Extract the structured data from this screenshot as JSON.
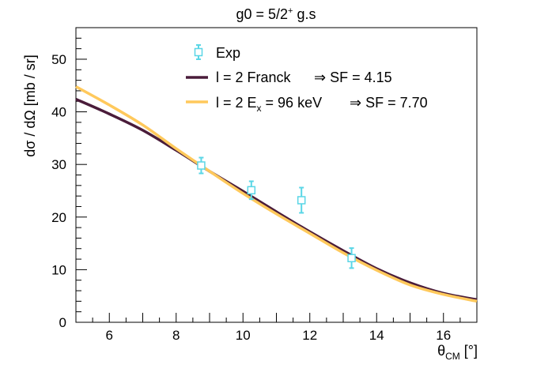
{
  "chart_data": {
    "type": "line",
    "title": "g0 = 5/2",
    "title_sup": "+",
    "title_tail": " g.s",
    "xlabel": "θ",
    "xlabel_sub": "CM",
    "xlabel_unit": " [°]",
    "ylabel": "dσ / dΩ [mb / sr]",
    "xlim": [
      5,
      17
    ],
    "ylim": [
      0,
      56
    ],
    "x_ticks": [
      6,
      8,
      10,
      12,
      14,
      16
    ],
    "y_ticks": [
      0,
      10,
      20,
      30,
      40,
      50
    ],
    "grid": false,
    "legend_position": "top-center",
    "series": [
      {
        "name": "Exp",
        "kind": "points",
        "color": "#5ad6e6",
        "points": [
          {
            "x": 8.75,
            "y": 29.8,
            "err": 1.5
          },
          {
            "x": 10.25,
            "y": 25.1,
            "err": 1.7
          },
          {
            "x": 11.75,
            "y": 23.2,
            "err": 2.4
          },
          {
            "x": 13.25,
            "y": 12.2,
            "err": 1.9
          }
        ]
      },
      {
        "name": "l = 2 Franck",
        "suffix": "⇒ SF = 4.15",
        "kind": "line",
        "color": "#4a1c3a",
        "x": [
          5,
          6,
          7,
          8,
          9,
          10,
          11,
          12,
          13,
          14,
          15,
          16,
          17
        ],
        "y": [
          42.4,
          39.6,
          36.5,
          32.7,
          28.7,
          24.9,
          21.0,
          17.2,
          13.6,
          10.2,
          7.5,
          5.5,
          4.3
        ]
      },
      {
        "name": "l = 2 E",
        "name_sub": "x",
        "name_tail": " = 96 keV",
        "suffix": "⇒ SF = 7.70",
        "kind": "line",
        "color": "#ffc95c",
        "x": [
          5,
          6,
          7,
          8,
          9,
          10,
          11,
          12,
          13,
          14,
          15,
          16,
          17
        ],
        "y": [
          44.8,
          41.3,
          37.5,
          33.0,
          28.7,
          24.5,
          20.6,
          16.9,
          13.2,
          9.9,
          7.1,
          5.3,
          4.0
        ]
      }
    ]
  }
}
